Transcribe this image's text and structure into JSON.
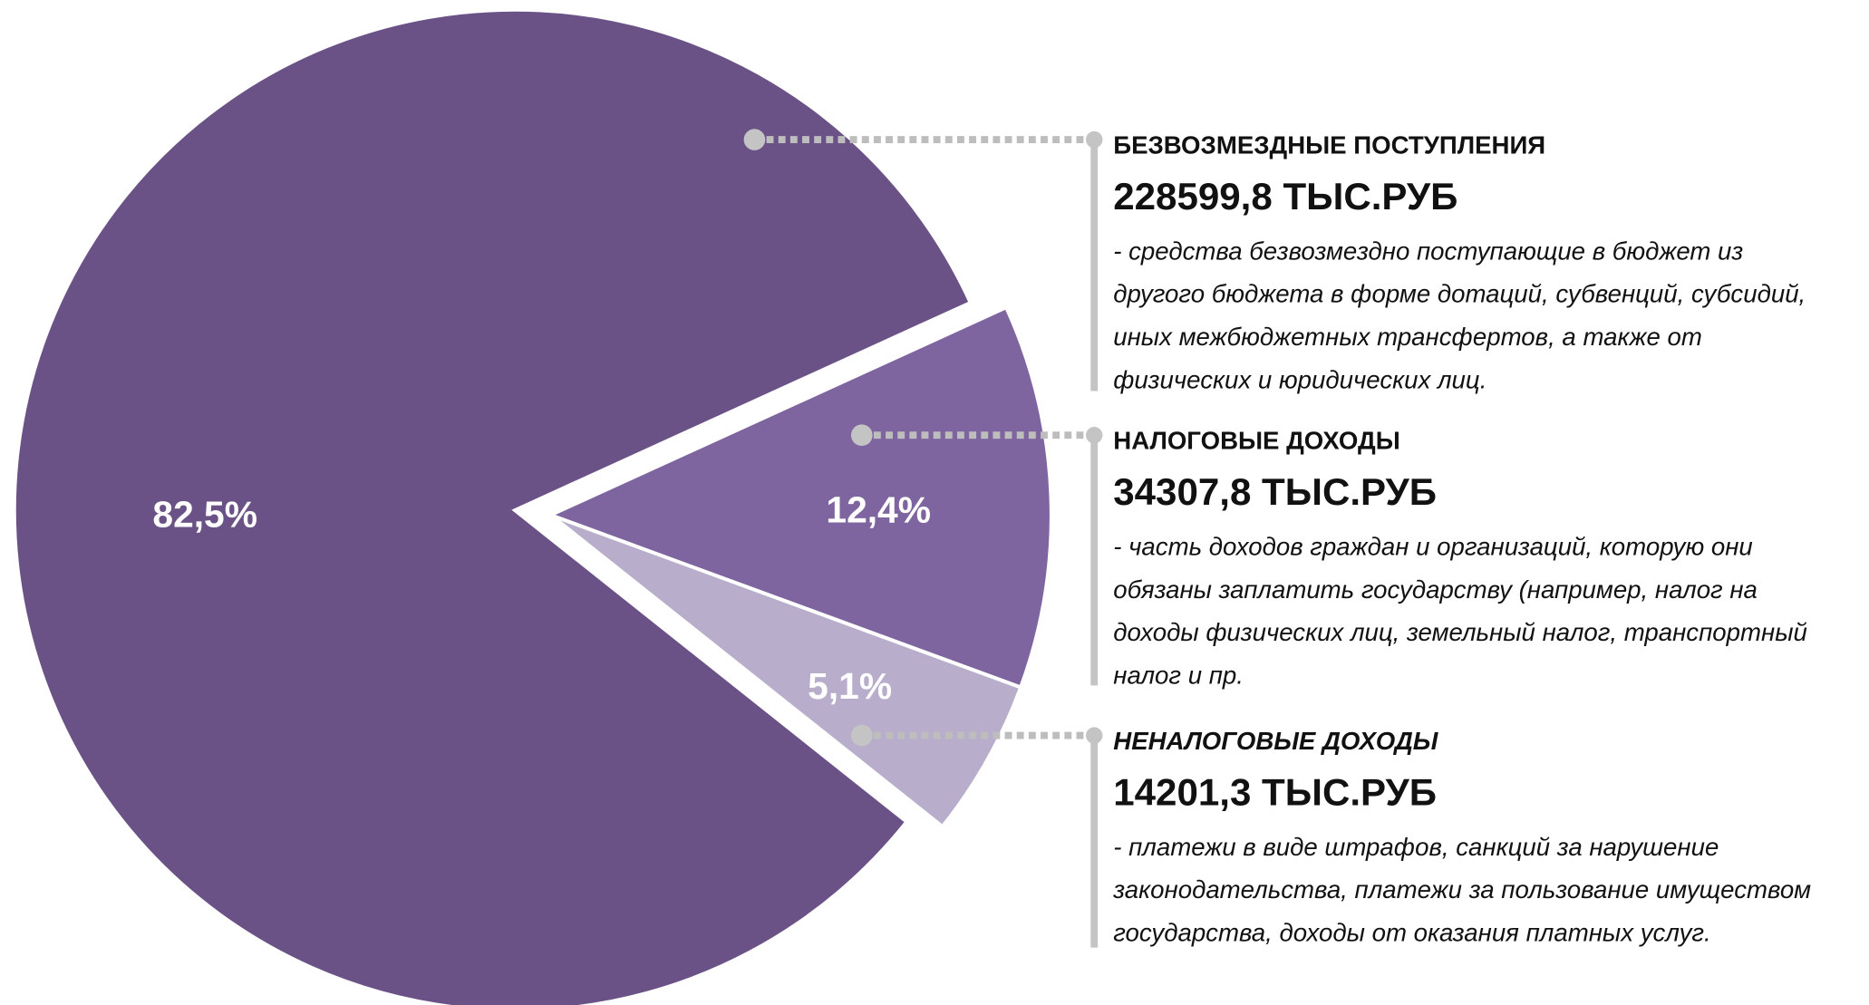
{
  "chart_data": {
    "type": "pie",
    "categories": [
      "БЕЗВОЗМЕЗДНЫЕ ПОСТУПЛЕНИЯ",
      "НАЛОГОВЫЕ ДОХОДЫ",
      "НЕНАЛОГОВЫЕ ДОХОДЫ"
    ],
    "values": [
      82.5,
      12.4,
      5.1
    ],
    "value_labels": [
      "82,5%",
      "12,4%",
      "5,1%"
    ],
    "colors": [
      "#6a5287",
      "#7f65a0",
      "#b8aecb"
    ],
    "amounts": [
      "228599,8 ТЫС.РУБ",
      "34307,8 ТЫС.РУБ",
      "14201,3 ТЫС.РУБ"
    ],
    "descriptions": [
      [
        "- средства безвозмездно поступающие в бюджет из",
        "другого бюджета в форме дотаций, субвенций, субсидий,",
        "иных межбюджетных трансфертов, а также от",
        "физических и юридических лиц."
      ],
      [
        "- часть доходов граждан и организаций, которую они",
        "обязаны заплатить государству (например, налог на",
        "доходы физических лиц, земельный налог, транспортный",
        "налог и пр."
      ],
      [
        "- платежи в виде штрафов, санкций за нарушение",
        "законодательства, платежи за пользование имуществом",
        "государства, доходы от оказания платных услуг."
      ]
    ]
  }
}
